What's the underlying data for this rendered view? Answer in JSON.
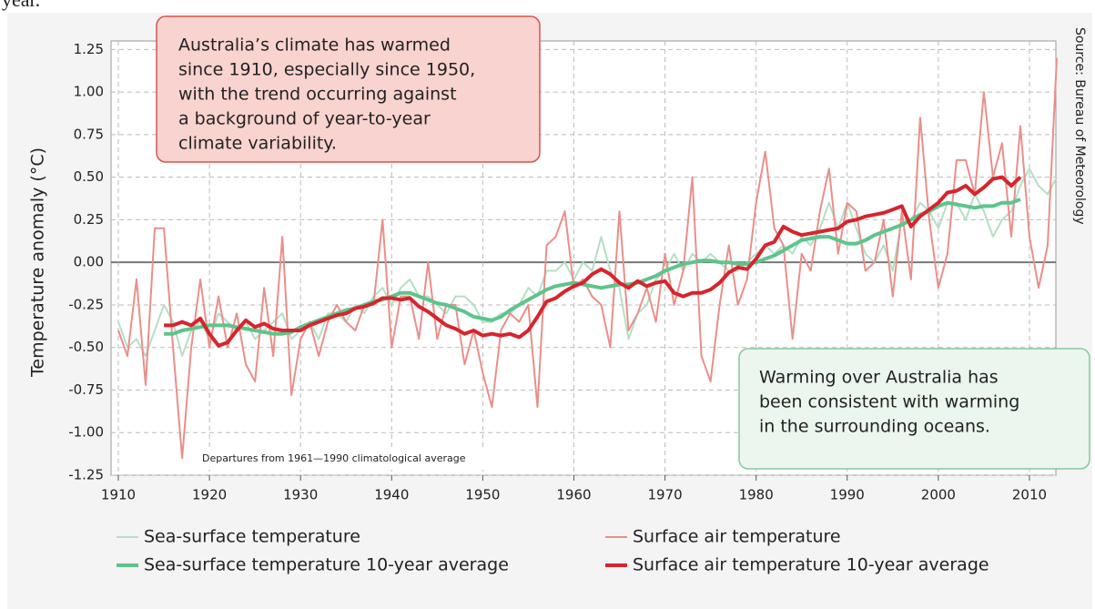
{
  "top_text": "year.",
  "chart_data": {
    "type": "line",
    "y_label": "Temperature anomaly (°C)",
    "source": "Source: Bureau of Meteorology",
    "note": "Departures from 1961—1990 climatological average",
    "annotations": [
      {
        "lines": [
          "Australia’s climate has warmed",
          "since 1910, especially since 1950,",
          "with the trend occurring against",
          "a background of year-to-year",
          "climate variability."
        ]
      },
      {
        "lines": [
          "Warming over Australia has",
          "been consistent with warming",
          "in the surrounding oceans."
        ]
      }
    ],
    "xlim": [
      1909.2,
      2012.9
    ],
    "xticks": [
      1910,
      1920,
      1930,
      1940,
      1950,
      1960,
      1970,
      1980,
      1990,
      2000,
      2010
    ],
    "ylim": [
      -1.25,
      1.3
    ],
    "yticks": [
      1.25,
      {
        "value": 1,
        "label": "1.00"
      },
      0.75,
      {
        "value": 0.5,
        "label": "0.50"
      },
      0.25,
      {
        "value": 0,
        "label": "0.00"
      },
      -0.25,
      {
        "value": -0.5,
        "label": "-0.50"
      },
      -0.75,
      {
        "value": -1,
        "label": "-1.00"
      },
      -1.25
    ],
    "grid": true,
    "series": [
      {
        "name": "Sea-surface temperature",
        "color": "#b5dfc3",
        "width": 2,
        "x": [
          1910,
          1911,
          1912,
          1913,
          1914,
          1915,
          1916,
          1917,
          1918,
          1919,
          1920,
          1921,
          1922,
          1923,
          1924,
          1925,
          1926,
          1927,
          1928,
          1929,
          1930,
          1931,
          1932,
          1933,
          1934,
          1935,
          1936,
          1937,
          1938,
          1939,
          1940,
          1941,
          1942,
          1943,
          1944,
          1945,
          1946,
          1947,
          1948,
          1949,
          1950,
          1951,
          1952,
          1953,
          1954,
          1955,
          1956,
          1957,
          1958,
          1959,
          1960,
          1961,
          1962,
          1963,
          1964,
          1965,
          1966,
          1967,
          1968,
          1969,
          1970,
          1971,
          1972,
          1973,
          1974,
          1975,
          1976,
          1977,
          1978,
          1979,
          1980,
          1981,
          1982,
          1983,
          1984,
          1985,
          1986,
          1987,
          1988,
          1989,
          1990,
          1991,
          1992,
          1993,
          1994,
          1995,
          1996,
          1997,
          1998,
          1999,
          2000,
          2001,
          2002,
          2003,
          2004,
          2005,
          2006,
          2007,
          2008,
          2009,
          2010,
          2011,
          2012,
          2013
        ],
        "values": [
          -0.35,
          -0.5,
          -0.45,
          -0.55,
          -0.4,
          -0.25,
          -0.35,
          -0.55,
          -0.4,
          -0.35,
          -0.45,
          -0.3,
          -0.35,
          -0.4,
          -0.35,
          -0.45,
          -0.4,
          -0.35,
          -0.3,
          -0.45,
          -0.4,
          -0.35,
          -0.45,
          -0.3,
          -0.3,
          -0.35,
          -0.25,
          -0.3,
          -0.2,
          -0.15,
          -0.25,
          -0.15,
          -0.1,
          -0.2,
          -0.2,
          -0.25,
          -0.3,
          -0.2,
          -0.2,
          -0.25,
          -0.35,
          -0.35,
          -0.3,
          -0.3,
          -0.25,
          -0.15,
          -0.2,
          -0.05,
          -0.05,
          0,
          -0.1,
          0,
          -0.05,
          0.15,
          -0.05,
          -0.15,
          -0.45,
          -0.3,
          -0.25,
          -0.1,
          -0.05,
          0.05,
          -0.05,
          0.05,
          0,
          0.05,
          0,
          -0.05,
          -0.05,
          0,
          0.05,
          0.1,
          0.05,
          0.1,
          0.05,
          0.15,
          0.1,
          0.2,
          0.35,
          0.2,
          0.35,
          0.2,
          0.05,
          0,
          0.1,
          -0.05,
          0.25,
          0.25,
          0.35,
          0.3,
          0.2,
          0.35,
          0.35,
          0.25,
          0.4,
          0.3,
          0.15,
          0.25,
          0.3,
          0.45,
          0.55,
          0.45,
          0.4,
          0.5
        ]
      },
      {
        "name": "Surface air temperature",
        "color": "#e98f8b",
        "width": 2,
        "x": [
          1910,
          1911,
          1912,
          1913,
          1914,
          1915,
          1916,
          1917,
          1918,
          1919,
          1920,
          1921,
          1922,
          1923,
          1924,
          1925,
          1926,
          1927,
          1928,
          1929,
          1930,
          1931,
          1932,
          1933,
          1934,
          1935,
          1936,
          1937,
          1938,
          1939,
          1940,
          1941,
          1942,
          1943,
          1944,
          1945,
          1946,
          1947,
          1948,
          1949,
          1950,
          1951,
          1952,
          1953,
          1954,
          1955,
          1956,
          1957,
          1958,
          1959,
          1960,
          1961,
          1962,
          1963,
          1964,
          1965,
          1966,
          1967,
          1968,
          1969,
          1970,
          1971,
          1972,
          1973,
          1974,
          1975,
          1976,
          1977,
          1978,
          1979,
          1980,
          1981,
          1982,
          1983,
          1984,
          1985,
          1986,
          1987,
          1988,
          1989,
          1990,
          1991,
          1992,
          1993,
          1994,
          1995,
          1996,
          1997,
          1998,
          1999,
          2000,
          2001,
          2002,
          2003,
          2004,
          2005,
          2006,
          2007,
          2008,
          2009,
          2010,
          2011,
          2012,
          2013
        ],
        "values": [
          -0.4,
          -0.55,
          -0.1,
          -0.72,
          0.2,
          0.2,
          -0.5,
          -1.15,
          -0.5,
          -0.1,
          -0.5,
          -0.2,
          -0.5,
          -0.3,
          -0.6,
          -0.7,
          -0.15,
          -0.55,
          0.15,
          -0.78,
          -0.45,
          -0.35,
          -0.55,
          -0.35,
          -0.25,
          -0.35,
          -0.4,
          -0.25,
          -0.25,
          0.25,
          -0.5,
          -0.2,
          -0.2,
          -0.45,
          0,
          -0.45,
          -0.25,
          -0.25,
          -0.6,
          -0.4,
          -0.65,
          -0.85,
          -0.4,
          -0.3,
          -0.35,
          -0.25,
          -0.85,
          0.1,
          0.15,
          0.3,
          -0.15,
          -0.1,
          -0.2,
          -0.25,
          -0.5,
          0.3,
          -0.4,
          -0.3,
          -0.15,
          -0.35,
          0.05,
          -0.25,
          -0.05,
          0.5,
          -0.55,
          -0.7,
          -0.25,
          0.1,
          -0.25,
          -0.1,
          0.35,
          0.65,
          0.2,
          0.1,
          -0.45,
          0.05,
          -0.05,
          0.3,
          0.55,
          0.05,
          0.35,
          0.3,
          -0.05,
          0,
          0.25,
          -0.2,
          0.3,
          -0.1,
          0.85,
          0.25,
          -0.15,
          0.05,
          0.6,
          0.6,
          0.4,
          1,
          0.5,
          0.7,
          0.15,
          0.8,
          0.15,
          -0.15,
          0.1,
          1.2
        ]
      },
      {
        "name": "Sea-surface temperature 10-year average",
        "color": "#5ec48c",
        "width": 4,
        "x": [
          1915,
          1916,
          1917,
          1918,
          1919,
          1920,
          1921,
          1922,
          1923,
          1924,
          1925,
          1926,
          1927,
          1928,
          1929,
          1930,
          1931,
          1932,
          1933,
          1934,
          1935,
          1936,
          1937,
          1938,
          1939,
          1940,
          1941,
          1942,
          1943,
          1944,
          1945,
          1946,
          1947,
          1948,
          1949,
          1950,
          1951,
          1952,
          1953,
          1954,
          1955,
          1956,
          1957,
          1958,
          1959,
          1960,
          1961,
          1962,
          1963,
          1964,
          1965,
          1966,
          1967,
          1968,
          1969,
          1970,
          1971,
          1972,
          1973,
          1974,
          1975,
          1976,
          1977,
          1978,
          1979,
          1980,
          1981,
          1982,
          1983,
          1984,
          1985,
          1986,
          1987,
          1988,
          1989,
          1990,
          1991,
          1992,
          1993,
          1994,
          1995,
          1996,
          1997,
          1998,
          1999,
          2000,
          2001,
          2002,
          2003,
          2004,
          2005,
          2006,
          2007,
          2008,
          2009
        ],
        "values": [
          -0.42,
          -0.42,
          -0.4,
          -0.39,
          -0.38,
          -0.37,
          -0.37,
          -0.37,
          -0.38,
          -0.39,
          -0.4,
          -0.41,
          -0.42,
          -0.42,
          -0.41,
          -0.38,
          -0.36,
          -0.34,
          -0.32,
          -0.3,
          -0.28,
          -0.27,
          -0.25,
          -0.23,
          -0.22,
          -0.2,
          -0.18,
          -0.18,
          -0.2,
          -0.22,
          -0.24,
          -0.25,
          -0.27,
          -0.29,
          -0.32,
          -0.33,
          -0.34,
          -0.32,
          -0.28,
          -0.25,
          -0.22,
          -0.19,
          -0.16,
          -0.14,
          -0.13,
          -0.12,
          -0.13,
          -0.14,
          -0.15,
          -0.14,
          -0.13,
          -0.13,
          -0.12,
          -0.1,
          -0.08,
          -0.05,
          -0.03,
          -0.01,
          0,
          0.01,
          0.01,
          0,
          0,
          -0.01,
          -0.01,
          0,
          0.02,
          0.04,
          0.07,
          0.1,
          0.13,
          0.14,
          0.15,
          0.15,
          0.13,
          0.11,
          0.11,
          0.13,
          0.16,
          0.18,
          0.2,
          0.22,
          0.25,
          0.28,
          0.3,
          0.33,
          0.35,
          0.34,
          0.33,
          0.32,
          0.33,
          0.33,
          0.35,
          0.35,
          0.37
        ]
      },
      {
        "name": "Surface air temperature 10-year average",
        "color": "#d6252d",
        "width": 4,
        "x": [
          1915,
          1916,
          1917,
          1918,
          1919,
          1920,
          1921,
          1922,
          1923,
          1924,
          1925,
          1926,
          1927,
          1928,
          1929,
          1930,
          1931,
          1932,
          1933,
          1934,
          1935,
          1936,
          1937,
          1938,
          1939,
          1940,
          1941,
          1942,
          1943,
          1944,
          1945,
          1946,
          1947,
          1948,
          1949,
          1950,
          1951,
          1952,
          1953,
          1954,
          1955,
          1956,
          1957,
          1958,
          1959,
          1960,
          1961,
          1962,
          1963,
          1964,
          1965,
          1966,
          1967,
          1968,
          1969,
          1970,
          1971,
          1972,
          1973,
          1974,
          1975,
          1976,
          1977,
          1978,
          1979,
          1980,
          1981,
          1982,
          1983,
          1984,
          1985,
          1986,
          1987,
          1988,
          1989,
          1990,
          1991,
          1992,
          1993,
          1994,
          1995,
          1996,
          1997,
          1998,
          1999,
          2000,
          2001,
          2002,
          2003,
          2004,
          2005,
          2006,
          2007,
          2008,
          2009
        ],
        "values": [
          -0.37,
          -0.37,
          -0.35,
          -0.37,
          -0.33,
          -0.42,
          -0.49,
          -0.47,
          -0.4,
          -0.34,
          -0.38,
          -0.36,
          -0.39,
          -0.4,
          -0.4,
          -0.4,
          -0.37,
          -0.35,
          -0.33,
          -0.31,
          -0.3,
          -0.27,
          -0.26,
          -0.24,
          -0.21,
          -0.21,
          -0.22,
          -0.21,
          -0.26,
          -0.29,
          -0.33,
          -0.37,
          -0.39,
          -0.42,
          -0.4,
          -0.43,
          -0.42,
          -0.43,
          -0.42,
          -0.44,
          -0.4,
          -0.32,
          -0.23,
          -0.21,
          -0.17,
          -0.14,
          -0.12,
          -0.07,
          -0.04,
          -0.07,
          -0.12,
          -0.15,
          -0.11,
          -0.14,
          -0.12,
          -0.11,
          -0.18,
          -0.2,
          -0.18,
          -0.18,
          -0.16,
          -0.12,
          -0.06,
          -0.03,
          -0.04,
          0.02,
          0.1,
          0.12,
          0.21,
          0.18,
          0.16,
          0.17,
          0.18,
          0.19,
          0.2,
          0.24,
          0.25,
          0.27,
          0.28,
          0.29,
          0.31,
          0.33,
          0.21,
          0.27,
          0.31,
          0.35,
          0.41,
          0.42,
          0.45,
          0.4,
          0.44,
          0.49,
          0.5,
          0.45,
          0.5
        ]
      }
    ]
  }
}
